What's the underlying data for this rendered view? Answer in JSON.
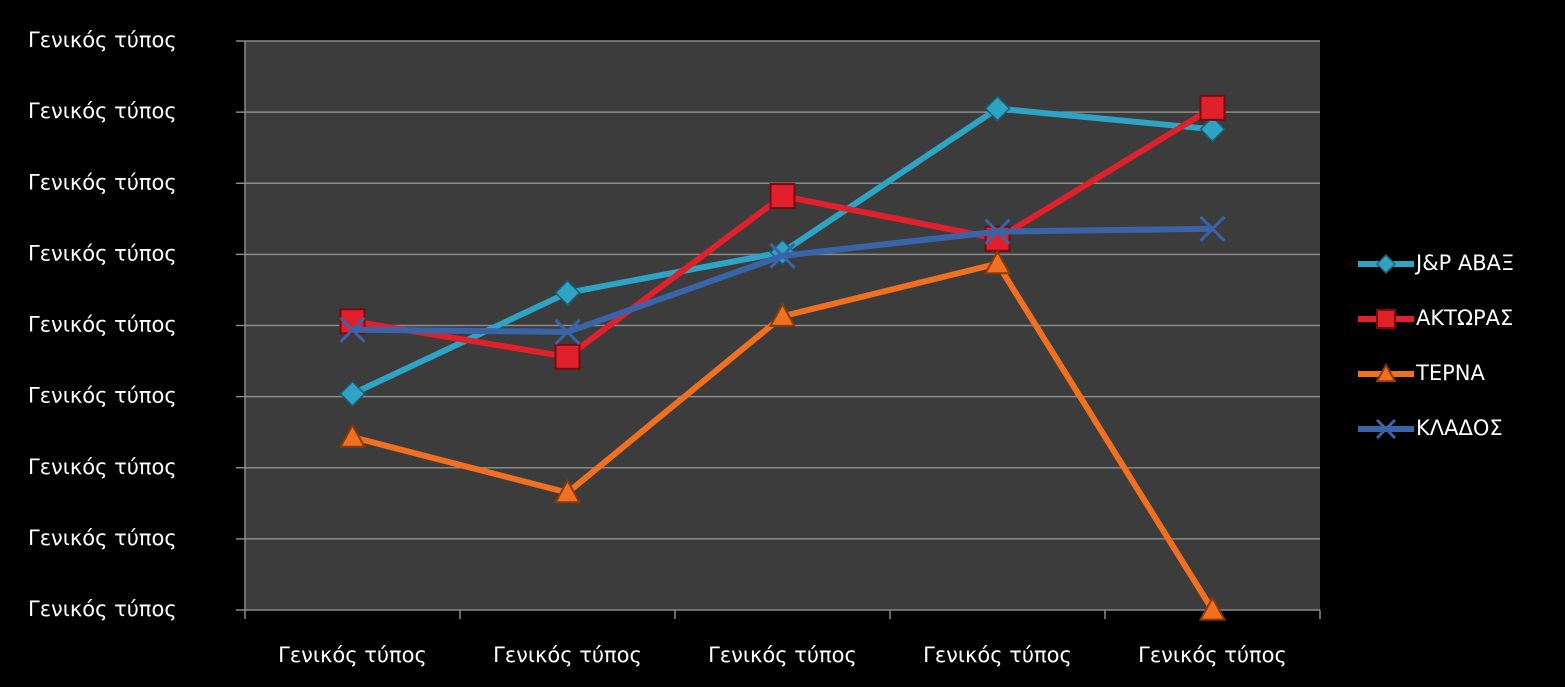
{
  "chart_data": {
    "type": "line",
    "categories": [
      "Γενικός τύπος",
      "Γενικός τύπος",
      "Γενικός τύπος",
      "Γενικός τύπος",
      "Γενικός τύπος"
    ],
    "series": [
      {
        "name": "J&P ΑΒΑΞ",
        "color": "#2ea3c4",
        "marker": "diamond",
        "values": [
          3.04,
          4.46,
          5.03,
          7.05,
          6.76
        ]
      },
      {
        "name": "ΑΚΤΩΡΑΣ",
        "color": "#e0202a",
        "marker": "square",
        "values": [
          4.06,
          3.56,
          5.82,
          5.22,
          7.06
        ]
      },
      {
        "name": "ΤΕΡΝΑ",
        "color": "#f07020",
        "marker": "triangle",
        "values": [
          2.43,
          1.65,
          4.13,
          4.87,
          0
        ]
      },
      {
        "name": "ΚΛΑΔΟΣ",
        "color": "#3a64a8",
        "marker": "x",
        "values": [
          3.94,
          3.91,
          4.98,
          5.32,
          5.36
        ]
      }
    ],
    "ylim": [
      0,
      8
    ],
    "yticks": [
      {
        "value": 0,
        "label": "Γενικός τύπος"
      },
      {
        "value": 1,
        "label": "Γενικός τύπος"
      },
      {
        "value": 2,
        "label": "Γενικός τύπος"
      },
      {
        "value": 3,
        "label": "Γενικός τύπος"
      },
      {
        "value": 4,
        "label": "Γενικός τύπος"
      },
      {
        "value": 5,
        "label": "Γενικός τύπος"
      },
      {
        "value": 6,
        "label": "Γενικός τύπος"
      },
      {
        "value": 7,
        "label": "Γενικός τύπος"
      },
      {
        "value": 8,
        "label": "Γενικός τύπος"
      }
    ],
    "grid": true,
    "legend": "right"
  }
}
